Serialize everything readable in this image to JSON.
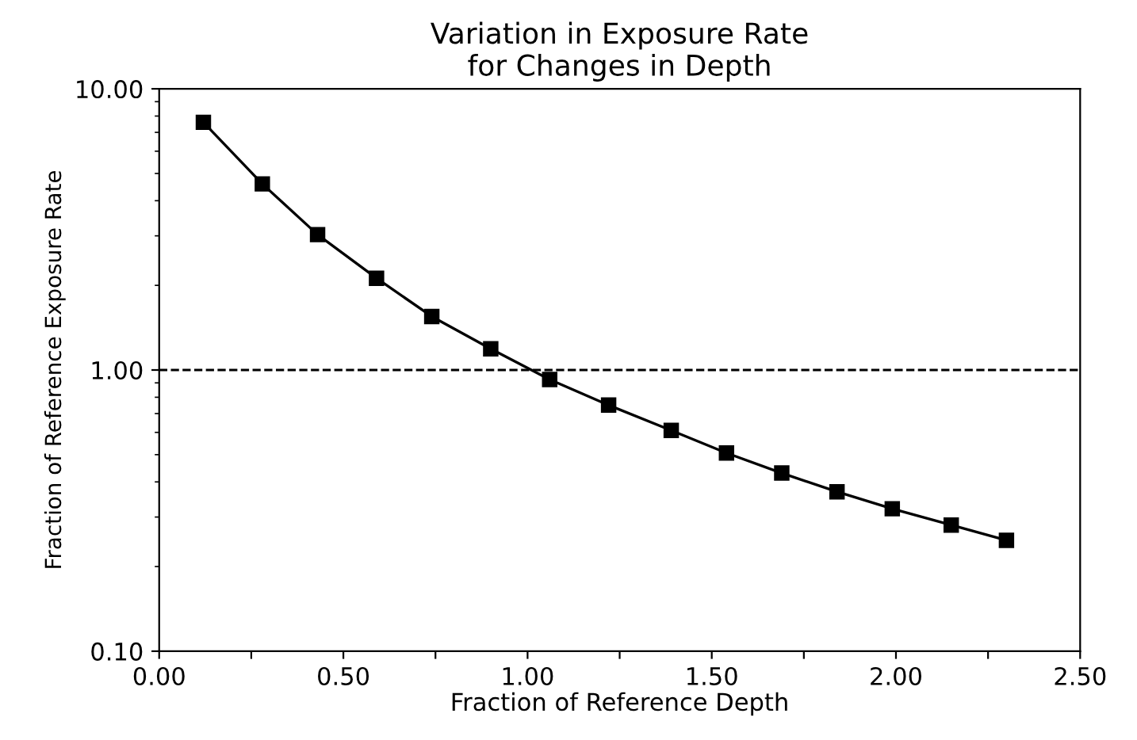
{
  "chart_data": {
    "type": "line",
    "title": "Variation in Exposure Rate\nfor Changes in Depth",
    "xlabel": "Fraction of Reference Depth",
    "ylabel": "Fraction of Reference Exposure Rate",
    "x": [
      0.12,
      0.28,
      0.43,
      0.59,
      0.74,
      0.9,
      1.06,
      1.22,
      1.39,
      1.54,
      1.69,
      1.84,
      1.99,
      2.15,
      2.3
    ],
    "series": [
      {
        "color": "#000000",
        "values": [
          7.6,
          4.59,
          3.03,
          2.12,
          1.55,
          1.19,
          0.925,
          0.75,
          0.61,
          0.507,
          0.43,
          0.369,
          0.321,
          0.281,
          0.248
        ]
      }
    ],
    "log": "y",
    "xlim": [
      0,
      2.5
    ],
    "ylim": [
      0.1,
      10
    ],
    "xticks": [
      {
        "value": 0,
        "label": "0.00"
      },
      {
        "value": 0.25,
        "label": null
      },
      {
        "value": 0.5,
        "label": "0.50"
      },
      {
        "value": 0.75,
        "label": null
      },
      {
        "value": 1,
        "label": "1.00"
      },
      {
        "value": 1.25,
        "label": null
      },
      {
        "value": 1.5,
        "label": "1.50"
      },
      {
        "value": 1.75,
        "label": null
      },
      {
        "value": 2,
        "label": "2.00"
      },
      {
        "value": 2.25,
        "label": null
      },
      {
        "value": 2.5,
        "label": "2.50"
      }
    ],
    "yticks": [
      {
        "value": 0.1,
        "label": "0.10"
      },
      {
        "value": 1,
        "label": "1.00"
      },
      {
        "value": 10,
        "label": "10.00"
      }
    ],
    "ref_lines": [
      {
        "axis": "y",
        "value": 1,
        "line_style": "dashed",
        "color": "#000000"
      }
    ],
    "marker": "square",
    "line_style": "solid",
    "grid": false
  }
}
